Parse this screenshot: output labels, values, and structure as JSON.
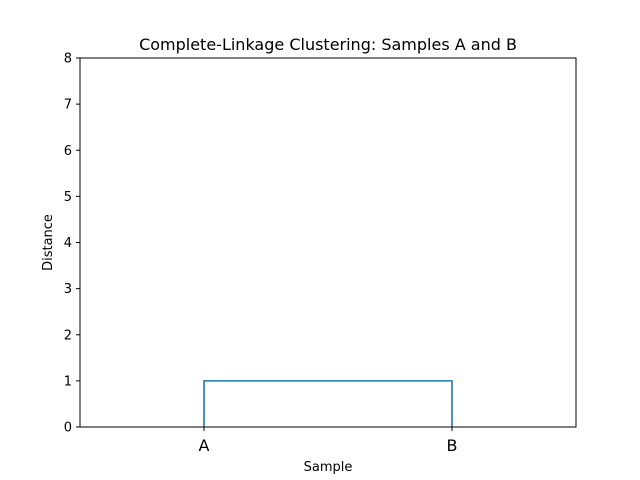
{
  "chart_data": {
    "type": "dendrogram",
    "title": "Complete-Linkage Clustering: Samples A and B",
    "xlabel": "Sample",
    "ylabel": "Distance",
    "leaves": [
      "A",
      "B"
    ],
    "merges": [
      {
        "left": "A",
        "right": "B",
        "distance": 1
      }
    ],
    "ylim": [
      0,
      8
    ],
    "yticks": [
      "0",
      "1",
      "2",
      "3",
      "4",
      "5",
      "6",
      "7",
      "8"
    ],
    "link_color": "#1f77b4",
    "grid": false
  }
}
